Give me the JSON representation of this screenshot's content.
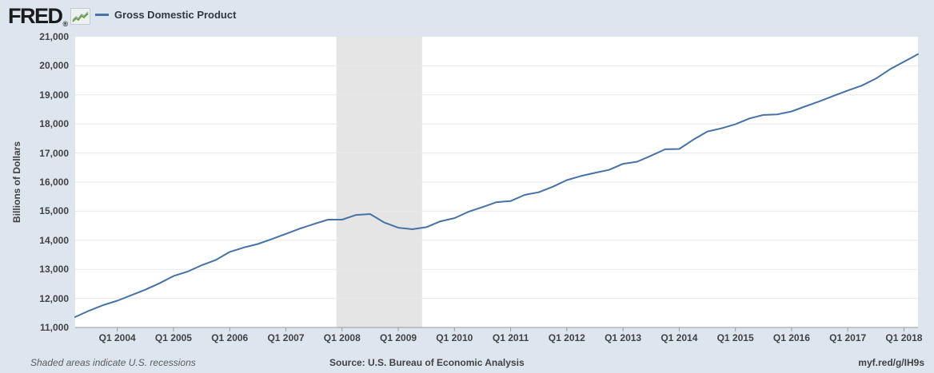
{
  "header": {
    "brand": "FRED",
    "registered": "®",
    "legend": {
      "label": "Gross Domestic Product"
    }
  },
  "chart_data": {
    "type": "line",
    "title": "Gross Domestic Product",
    "ylabel": "Billions of Dollars",
    "ylim": [
      11000,
      21000
    ],
    "ytick_step": 1000,
    "ytick_labels": [
      "21,000",
      "20,000",
      "19,000",
      "18,000",
      "17,000",
      "16,000",
      "15,000",
      "14,000",
      "13,000",
      "12,000",
      "11,000"
    ],
    "grid": "horizontal-only",
    "legend_position": "top-left-header",
    "quarters": [
      "2003-Q2",
      "2003-Q3",
      "2003-Q4",
      "2004-Q1",
      "2004-Q2",
      "2004-Q3",
      "2004-Q4",
      "2005-Q1",
      "2005-Q2",
      "2005-Q3",
      "2005-Q4",
      "2006-Q1",
      "2006-Q2",
      "2006-Q3",
      "2006-Q4",
      "2007-Q1",
      "2007-Q2",
      "2007-Q3",
      "2007-Q4",
      "2008-Q1",
      "2008-Q2",
      "2008-Q3",
      "2008-Q4",
      "2009-Q1",
      "2009-Q2",
      "2009-Q3",
      "2009-Q4",
      "2010-Q1",
      "2010-Q2",
      "2010-Q3",
      "2010-Q4",
      "2011-Q1",
      "2011-Q2",
      "2011-Q3",
      "2011-Q4",
      "2012-Q1",
      "2012-Q2",
      "2012-Q3",
      "2012-Q4",
      "2013-Q1",
      "2013-Q2",
      "2013-Q3",
      "2013-Q4",
      "2014-Q1",
      "2014-Q2",
      "2014-Q3",
      "2014-Q4",
      "2015-Q1",
      "2015-Q2",
      "2015-Q3",
      "2015-Q4",
      "2016-Q1",
      "2016-Q2",
      "2016-Q3",
      "2016-Q4",
      "2017-Q1",
      "2017-Q2",
      "2017-Q3",
      "2017-Q4",
      "2018-Q1",
      "2018-Q2"
    ],
    "values": [
      11360,
      11580,
      11770,
      11920,
      12110,
      12300,
      12520,
      12770,
      12920,
      13140,
      13320,
      13600,
      13750,
      13870,
      14040,
      14220,
      14400,
      14560,
      14710,
      14710,
      14870,
      14900,
      14610,
      14430,
      14380,
      14450,
      14650,
      14760,
      14980,
      15140,
      15310,
      15350,
      15560,
      15650,
      15840,
      16070,
      16210,
      16320,
      16420,
      16630,
      16700,
      16910,
      17130,
      17140,
      17460,
      17740,
      17850,
      17990,
      18190,
      18310,
      18330,
      18430,
      18610,
      18780,
      18970,
      19150,
      19320,
      19560,
      19880,
      20140,
      20400
    ],
    "xticks": [
      {
        "label": "Q1 2004",
        "index": 3
      },
      {
        "label": "Q1 2005",
        "index": 7
      },
      {
        "label": "Q1 2006",
        "index": 11
      },
      {
        "label": "Q1 2007",
        "index": 15
      },
      {
        "label": "Q1 2008",
        "index": 19
      },
      {
        "label": "Q1 2009",
        "index": 23
      },
      {
        "label": "Q1 2010",
        "index": 27
      },
      {
        "label": "Q1 2011",
        "index": 31
      },
      {
        "label": "Q1 2012",
        "index": 35
      },
      {
        "label": "Q1 2013",
        "index": 39
      },
      {
        "label": "Q1 2014",
        "index": 43
      },
      {
        "label": "Q1 2015",
        "index": 47
      },
      {
        "label": "Q1 2016",
        "index": 51
      },
      {
        "label": "Q1 2017",
        "index": 55
      },
      {
        "label": "Q1 2018",
        "index": 59
      }
    ],
    "recession_bands": [
      {
        "start_index": 18.6,
        "end_index": 24.7
      }
    ]
  },
  "footer": {
    "note": "Shaded areas indicate U.S. recessions",
    "source": "Source: U.S. Bureau of Economic Analysis",
    "link": "myf.red/g/IH9s"
  },
  "colors": {
    "page_background": "#dde5ef",
    "plot_background": "#ffffff",
    "line": "#4572a7",
    "recession_band": "#e5e5e5",
    "gridline": "#e8e8e8",
    "axis": "#999999",
    "tick_text": "#424242"
  }
}
